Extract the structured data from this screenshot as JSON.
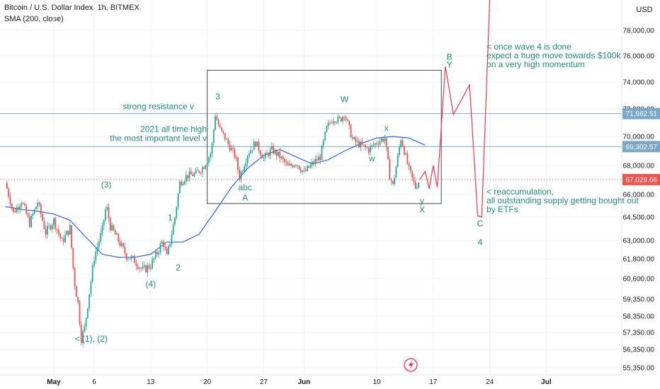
{
  "header": {
    "symbol": "Bitcoin / U.S. Dollar Index, 1h, BITMEX",
    "indicator": "SMA (200, close)",
    "currency": "USD"
  },
  "colors": {
    "up": "#26a69a",
    "down": "#ef5350",
    "sma": "#2962ff",
    "hline": "#7ba7c9",
    "projection": "#f23645",
    "annotation": "#22897e"
  },
  "chart_data": {
    "type": "candlestick",
    "x_ticks": [
      "May",
      "6",
      "13",
      "20",
      "27",
      "Jun",
      "10",
      "17",
      "24",
      "Jul"
    ],
    "x_tick_days": [
      0,
      5,
      12,
      19,
      26,
      31,
      40,
      47,
      54,
      61
    ],
    "y_ticks": [
      55350,
      56350,
      57350,
      58350,
      59350,
      60600,
      61800,
      63000,
      64500,
      66000,
      68000,
      70000,
      72000,
      74000,
      76000,
      78000
    ],
    "y_tick_labels": [
      "55,350.00",
      "56,350.00",
      "57,350.00",
      "58,350.00",
      "59,350.00",
      "60,600.00",
      "61,800.00",
      "63,000.00",
      "64,500.00",
      "66,000.00",
      "68,000.00",
      "70,000.00",
      "72,000.00",
      "74,000.00",
      "76,000.00",
      "78,000.00"
    ],
    "ylim": [
      55000,
      80000
    ],
    "xlim": [
      -6,
      70
    ],
    "price_tags": [
      {
        "value": 71662.51,
        "label": "71,662.51",
        "color": "#7ba7c9"
      },
      {
        "value": 69302.57,
        "label": "69,302.57",
        "color": "#7ba7c9"
      },
      {
        "value": 67029.66,
        "label": "67,029.66",
        "color": "#ef5350"
      }
    ],
    "horizontal_lines": [
      {
        "value": 71662.51,
        "label": "strong resistance v"
      },
      {
        "value": 69302.57,
        "label_lines": [
          "2021 all time high",
          "the most important level v"
        ]
      }
    ],
    "current_price": 67029.66,
    "box": {
      "x0": 19,
      "x1": 48,
      "y0": 65400,
      "y1": 74900
    },
    "price_path": [
      [
        -6,
        66800
      ],
      [
        -5,
        64800
      ],
      [
        -4,
        65600
      ],
      [
        -3,
        64100
      ],
      [
        -2,
        65500
      ],
      [
        -1,
        63500
      ],
      [
        0,
        64300
      ],
      [
        1,
        62900
      ],
      [
        2,
        63800
      ],
      [
        2.5,
        60600
      ],
      [
        3,
        59100
      ],
      [
        3.4,
        57000
      ],
      [
        3.8,
        57600
      ],
      [
        4.3,
        59400
      ],
      [
        5,
        61900
      ],
      [
        6,
        63700
      ],
      [
        6.5,
        65300
      ],
      [
        7,
        63900
      ],
      [
        8,
        63000
      ],
      [
        9,
        62000
      ],
      [
        10,
        61700
      ],
      [
        11,
        61100
      ],
      [
        12,
        61400
      ],
      [
        12.8,
        62200
      ],
      [
        13.5,
        63000
      ],
      [
        14,
        61900
      ],
      [
        15,
        64500
      ],
      [
        15.6,
        66800
      ],
      [
        16.5,
        67300
      ],
      [
        17.5,
        67400
      ],
      [
        18.5,
        67900
      ],
      [
        19.5,
        68900
      ],
      [
        20,
        71600
      ],
      [
        20.5,
        70600
      ],
      [
        21.5,
        69600
      ],
      [
        22.5,
        68600
      ],
      [
        23,
        67200
      ],
      [
        24,
        68800
      ],
      [
        25,
        69600
      ],
      [
        26,
        68500
      ],
      [
        27,
        69100
      ],
      [
        28,
        68600
      ],
      [
        29,
        67900
      ],
      [
        30,
        68200
      ],
      [
        31,
        67500
      ],
      [
        32,
        68100
      ],
      [
        33,
        68600
      ],
      [
        33.8,
        70600
      ],
      [
        34.5,
        71300
      ],
      [
        35.5,
        71200
      ],
      [
        36,
        71700
      ],
      [
        37,
        69800
      ],
      [
        38,
        69400
      ],
      [
        39,
        69100
      ],
      [
        40,
        69600
      ],
      [
        41,
        69900
      ],
      [
        41.6,
        67300
      ],
      [
        42,
        66600
      ],
      [
        43,
        69900
      ],
      [
        44,
        67700
      ],
      [
        44.8,
        66500
      ],
      [
        45.3,
        67000
      ]
    ],
    "sma_path": [
      [
        -6,
        65200
      ],
      [
        -4,
        65000
      ],
      [
        -2,
        64900
      ],
      [
        0,
        64700
      ],
      [
        2,
        64300
      ],
      [
        4,
        63200
      ],
      [
        6,
        62100
      ],
      [
        8,
        61900
      ],
      [
        10,
        61900
      ],
      [
        12,
        62100
      ],
      [
        14,
        62900
      ],
      [
        16,
        62900
      ],
      [
        18,
        63400
      ],
      [
        20,
        64900
      ],
      [
        22,
        66500
      ],
      [
        24,
        67800
      ],
      [
        26,
        68700
      ],
      [
        28,
        69100
      ],
      [
        30,
        68600
      ],
      [
        32,
        68100
      ],
      [
        34,
        68400
      ],
      [
        36,
        69000
      ],
      [
        38,
        69500
      ],
      [
        40,
        69900
      ],
      [
        42,
        70000
      ],
      [
        44,
        69900
      ],
      [
        46,
        69400
      ]
    ],
    "projection_path": [
      [
        45.3,
        67000
      ],
      [
        46,
        67600
      ],
      [
        46.5,
        66400
      ],
      [
        47,
        68000
      ],
      [
        47.5,
        66500
      ],
      [
        48.5,
        75200
      ],
      [
        49.5,
        71600
      ],
      [
        51.5,
        73800
      ],
      [
        52.5,
        64600
      ],
      [
        53,
        64500
      ],
      [
        54,
        80500
      ]
    ],
    "annotations": [
      {
        "x": 2.6,
        "price": 56800,
        "text": "< (1), (2)",
        "anchor": "start"
      },
      {
        "x": 6.5,
        "price": 66500,
        "text": "(3)",
        "anchor": "middle"
      },
      {
        "x": 12,
        "price": 60100,
        "text": "(4)",
        "anchor": "middle"
      },
      {
        "x": 14.4,
        "price": 64300,
        "text": "1",
        "anchor": "middle"
      },
      {
        "x": 15.4,
        "price": 61100,
        "text": "2",
        "anchor": "middle"
      },
      {
        "x": 20.3,
        "price": 72700,
        "text": "3",
        "anchor": "middle"
      },
      {
        "x": 23.7,
        "price": 66300,
        "text": "abc",
        "anchor": "middle"
      },
      {
        "x": 23.7,
        "price": 65600,
        "text": "A",
        "anchor": "middle"
      },
      {
        "x": 36,
        "price": 72500,
        "text": "W",
        "anchor": "middle"
      },
      {
        "x": 39.4,
        "price": 68300,
        "text": "w",
        "anchor": "middle"
      },
      {
        "x": 41.2,
        "price": 70400,
        "text": "x",
        "anchor": "middle"
      },
      {
        "x": 45.6,
        "price": 65400,
        "text": "y",
        "anchor": "middle"
      },
      {
        "x": 45.6,
        "price": 64800,
        "text": "X",
        "anchor": "middle"
      },
      {
        "x": 49,
        "price": 75700,
        "text": "B",
        "anchor": "middle"
      },
      {
        "x": 49,
        "price": 75100,
        "text": "Y",
        "anchor": "middle"
      },
      {
        "x": 52.8,
        "price": 63900,
        "text": "C",
        "anchor": "middle"
      },
      {
        "x": 52.8,
        "price": 62700,
        "text": "4",
        "anchor": "middle"
      }
    ],
    "notes": [
      {
        "x": 53.6,
        "price": 76500,
        "lines": [
          "< once wave 4 is done",
          "expect a huge move towards $100k",
          "on a very high momentum"
        ]
      },
      {
        "x": 53.6,
        "price": 66000,
        "lines": [
          "< reaccumulation,",
          "all outstanding supply getting bought out",
          "by ETFs"
        ]
      }
    ]
  }
}
